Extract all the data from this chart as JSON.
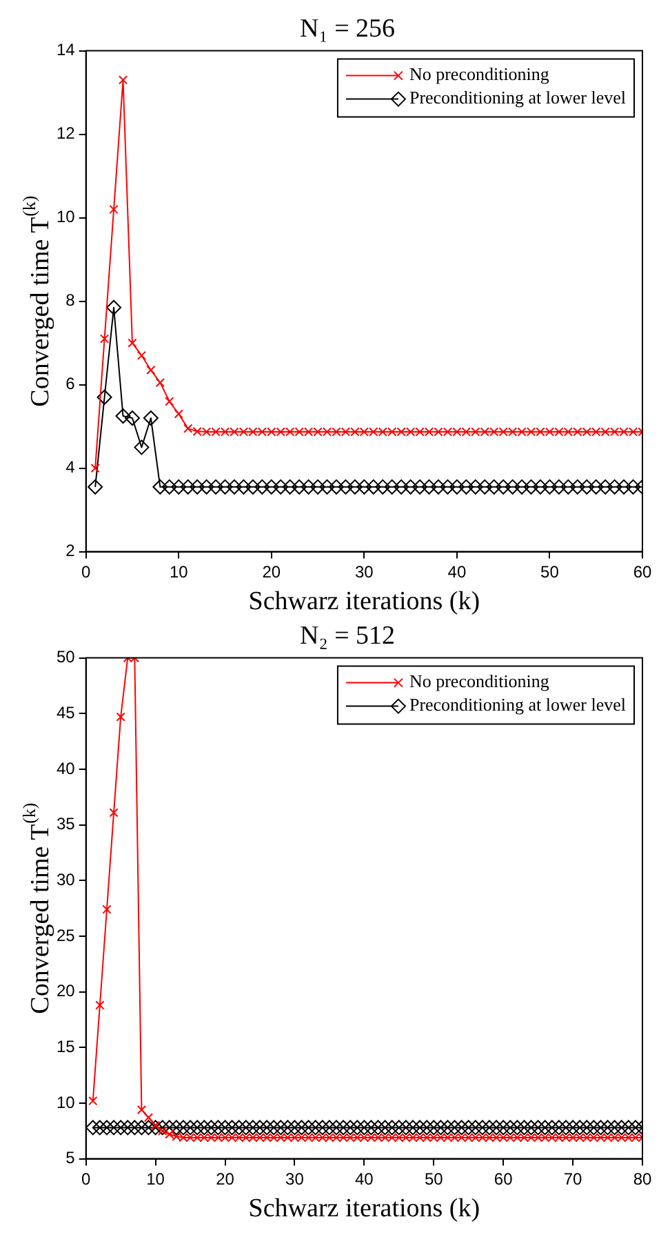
{
  "chart_data": [
    {
      "type": "line",
      "title": "N₁ = 256",
      "xlabel": "Schwarz iterations (k)",
      "ylabel": "Converged time T$^{(k)}$",
      "x": [
        1,
        2,
        3,
        4,
        5,
        6,
        7,
        8,
        9,
        10,
        11,
        12,
        13,
        14,
        15,
        16,
        17,
        18,
        19,
        20,
        21,
        22,
        23,
        24,
        25,
        26,
        27,
        28,
        29,
        30,
        31,
        32,
        33,
        34,
        35,
        36,
        37,
        38,
        39,
        40,
        41,
        42,
        43,
        44,
        45,
        46,
        47,
        48,
        49,
        50,
        51,
        52,
        53,
        54,
        55,
        56,
        57,
        58,
        59,
        60
      ],
      "series": [
        {
          "name": "No preconditioning",
          "color": "#ff0000",
          "marker": "cross",
          "values": [
            4.0,
            7.1,
            10.2,
            13.3,
            7.0,
            6.7,
            6.35,
            6.05,
            5.6,
            5.3,
            4.95,
            4.88,
            4.87,
            4.87,
            4.87,
            4.87,
            4.87,
            4.87,
            4.87,
            4.87,
            4.87,
            4.87,
            4.87,
            4.87,
            4.87,
            4.87,
            4.87,
            4.87,
            4.87,
            4.87,
            4.87,
            4.87,
            4.87,
            4.87,
            4.87,
            4.87,
            4.87,
            4.87,
            4.87,
            4.87,
            4.87,
            4.87,
            4.87,
            4.87,
            4.87,
            4.87,
            4.87,
            4.87,
            4.87,
            4.87,
            4.87,
            4.87,
            4.87,
            4.87,
            4.87,
            4.87,
            4.87,
            4.87,
            4.87,
            4.87
          ]
        },
        {
          "name": "Preconditioning at lower level",
          "color": "#000000",
          "marker": "diamond",
          "values": [
            3.55,
            5.7,
            7.85,
            5.25,
            5.2,
            4.5,
            5.2,
            3.55,
            3.55,
            3.55,
            3.55,
            3.55,
            3.55,
            3.55,
            3.55,
            3.55,
            3.55,
            3.55,
            3.55,
            3.55,
            3.55,
            3.55,
            3.55,
            3.55,
            3.55,
            3.55,
            3.55,
            3.55,
            3.55,
            3.55,
            3.55,
            3.55,
            3.55,
            3.55,
            3.55,
            3.55,
            3.55,
            3.55,
            3.55,
            3.55,
            3.55,
            3.55,
            3.55,
            3.55,
            3.55,
            3.55,
            3.55,
            3.55,
            3.55,
            3.55,
            3.55,
            3.55,
            3.55,
            3.55,
            3.55,
            3.55,
            3.55,
            3.55,
            3.55,
            3.55
          ]
        }
      ],
      "xlim": [
        0,
        60
      ],
      "xticks": [
        0,
        10,
        20,
        30,
        40,
        50,
        60
      ],
      "ylim": [
        2,
        14
      ],
      "yticks": [
        2,
        4,
        6,
        8,
        10,
        12,
        14
      ],
      "grid": false,
      "legend": "top right"
    },
    {
      "type": "line",
      "title": "N₂ = 512",
      "xlabel": "Schwarz iterations (k)",
      "ylabel": "Converged time T$^{(k)}$",
      "x": [
        1,
        2,
        3,
        4,
        5,
        6,
        7,
        8,
        9,
        10,
        11,
        12,
        13,
        14,
        15,
        16,
        17,
        18,
        19,
        20,
        21,
        22,
        23,
        24,
        25,
        26,
        27,
        28,
        29,
        30,
        31,
        32,
        33,
        34,
        35,
        36,
        37,
        38,
        39,
        40,
        41,
        42,
        43,
        44,
        45,
        46,
        47,
        48,
        49,
        50,
        51,
        52,
        53,
        54,
        55,
        56,
        57,
        58,
        59,
        60,
        61,
        62,
        63,
        64,
        65,
        66,
        67,
        68,
        69,
        70,
        71,
        72,
        73,
        74,
        75,
        76,
        77,
        78,
        79,
        80
      ],
      "series": [
        {
          "name": "No preconditioning",
          "color": "#ff0000",
          "marker": "cross",
          "values": [
            10.2,
            18.8,
            27.4,
            36.1,
            44.7,
            50,
            50,
            9.4,
            8.7,
            8.0,
            7.5,
            7.2,
            7.0,
            6.9,
            6.9,
            6.9,
            6.9,
            6.9,
            6.9,
            6.9,
            6.9,
            6.9,
            6.9,
            6.9,
            6.9,
            6.9,
            6.9,
            6.9,
            6.9,
            6.9,
            6.9,
            6.9,
            6.9,
            6.9,
            6.9,
            6.9,
            6.9,
            6.9,
            6.9,
            6.9,
            6.9,
            6.9,
            6.9,
            6.9,
            6.9,
            6.9,
            6.9,
            6.9,
            6.9,
            6.9,
            6.9,
            6.9,
            6.9,
            6.9,
            6.9,
            6.9,
            6.9,
            6.9,
            6.9,
            6.9,
            6.9,
            6.9,
            6.9,
            6.9,
            6.9,
            6.9,
            6.9,
            6.9,
            6.9,
            6.9,
            6.9,
            6.9,
            6.9,
            6.9,
            6.9,
            6.9,
            6.9,
            6.9,
            6.9,
            6.9
          ]
        },
        {
          "name": "Preconditioning at lower level",
          "color": "#000000",
          "marker": "diamond",
          "values": [
            7.8,
            7.8,
            7.8,
            7.8,
            7.8,
            7.8,
            7.8,
            7.8,
            7.8,
            7.8,
            7.8,
            7.8,
            7.8,
            7.8,
            7.8,
            7.8,
            7.8,
            7.8,
            7.8,
            7.8,
            7.8,
            7.8,
            7.8,
            7.8,
            7.8,
            7.8,
            7.8,
            7.8,
            7.8,
            7.8,
            7.8,
            7.8,
            7.8,
            7.8,
            7.8,
            7.8,
            7.8,
            7.8,
            7.8,
            7.8,
            7.8,
            7.8,
            7.8,
            7.8,
            7.8,
            7.8,
            7.8,
            7.8,
            7.8,
            7.8,
            7.8,
            7.8,
            7.8,
            7.8,
            7.8,
            7.8,
            7.8,
            7.8,
            7.8,
            7.8,
            7.8,
            7.8,
            7.8,
            7.8,
            7.8,
            7.8,
            7.8,
            7.8,
            7.8,
            7.8,
            7.8,
            7.8,
            7.8,
            7.8,
            7.8,
            7.8,
            7.8,
            7.8,
            7.8,
            7.8
          ]
        }
      ],
      "xlim": [
        0,
        80
      ],
      "xticks": [
        0,
        10,
        20,
        30,
        40,
        50,
        60,
        70,
        80
      ],
      "ylim": [
        5,
        50
      ],
      "yticks": [
        5,
        10,
        15,
        20,
        25,
        30,
        35,
        40,
        45,
        50
      ],
      "grid": false,
      "legend": "top right"
    }
  ]
}
